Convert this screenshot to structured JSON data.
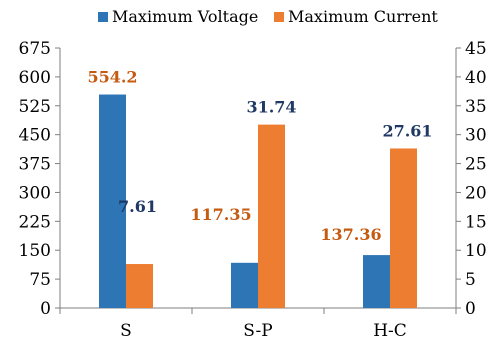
{
  "chart_data": {
    "type": "bar",
    "categories": [
      "S",
      "S-P",
      "H-C"
    ],
    "series": [
      {
        "name": "Maximum Voltage",
        "axis": "left",
        "color": "#2e75b6",
        "label_color": "#1f3864",
        "values": [
          554.2,
          117.35,
          137.36
        ],
        "labels": [
          "554.2",
          "117.35",
          "137.36"
        ]
      },
      {
        "name": "Maximum Current",
        "axis": "right",
        "color": "#ed7d31",
        "label_color": "#c55a11",
        "values": [
          7.61,
          31.74,
          27.61
        ],
        "labels": [
          "7.61",
          "31.74",
          "27.61"
        ]
      }
    ],
    "y_left": {
      "min": 0,
      "max": 675,
      "step": 75
    },
    "y_right": {
      "min": 0,
      "max": 45,
      "step": 5
    },
    "legend_position": "top",
    "grid": false
  }
}
